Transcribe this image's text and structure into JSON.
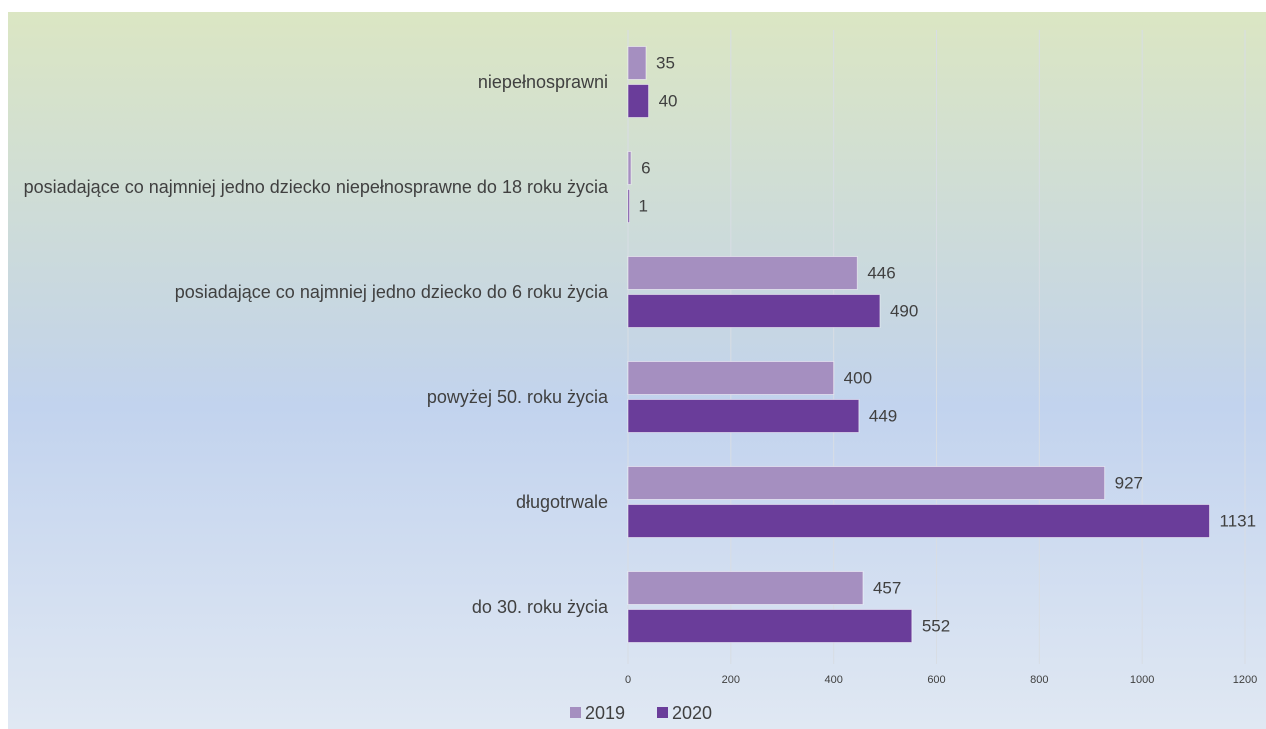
{
  "chart_data": {
    "type": "bar",
    "orientation": "horizontal",
    "categories": [
      "niepełnosprawni",
      "posiadające co najmniej jedno dziecko niepełnosprawne do 18 roku życia",
      "posiadające co najmniej jedno dziecko do 6 roku życia",
      "powyżej 50. roku życia",
      "długotrwale",
      "do 30. roku życia"
    ],
    "series": [
      {
        "name": "2019",
        "color": "#a58fc0",
        "values": [
          35,
          6,
          446,
          400,
          927,
          457
        ]
      },
      {
        "name": "2020",
        "color": "#6a3d9a",
        "values": [
          40,
          1,
          490,
          449,
          1131,
          552
        ]
      }
    ],
    "xlim": [
      0,
      1200
    ],
    "xticks": [
      0,
      200,
      400,
      600,
      800,
      1000,
      1200
    ],
    "grid": true,
    "legend": "bottom"
  }
}
